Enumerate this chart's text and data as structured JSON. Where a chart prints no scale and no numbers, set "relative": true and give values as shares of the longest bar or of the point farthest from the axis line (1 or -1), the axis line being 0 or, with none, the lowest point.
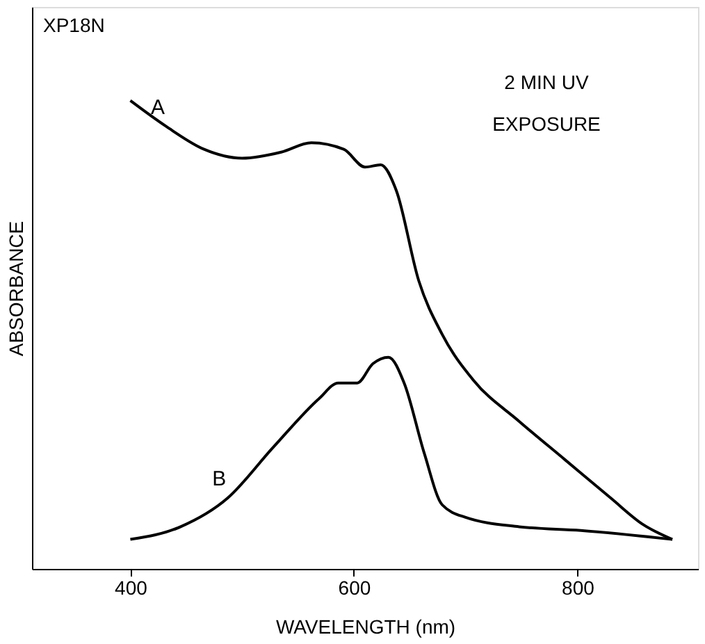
{
  "chart_data": {
    "type": "line",
    "relative": true,
    "xlabel": "WAVELENGTH (nm)",
    "ylabel": "ABSORBANCE",
    "xlim": [
      312,
      908
    ],
    "xticks": [
      400,
      600,
      800
    ],
    "grid": false,
    "legend": false,
    "marker": "none",
    "line_style": "solid",
    "annotations": [
      "XP18N",
      "2 MIN UV",
      "EXPOSURE"
    ],
    "series": [
      {
        "name": "A",
        "color": "#000000",
        "x": [
          400,
          432,
          466,
          500,
          535,
          562,
          591,
          610,
          624,
          638,
          658,
          679,
          707,
          748,
          789,
          830,
          858,
          885
        ],
        "values": [
          1.0,
          0.945,
          0.896,
          0.877,
          0.89,
          0.91,
          0.896,
          0.858,
          0.863,
          0.808,
          0.616,
          0.501,
          0.403,
          0.315,
          0.233,
          0.151,
          0.096,
          0.063
        ]
      },
      {
        "name": "B",
        "color": "#000000",
        "x": [
          400,
          445,
          487,
          528,
          569,
          586,
          603,
          617,
          631,
          645,
          663,
          679,
          700,
          748,
          803,
          885
        ],
        "values": [
          0.063,
          0.09,
          0.151,
          0.26,
          0.364,
          0.397,
          0.397,
          0.438,
          0.452,
          0.397,
          0.247,
          0.137,
          0.11,
          0.09,
          0.082,
          0.063
        ]
      }
    ]
  }
}
